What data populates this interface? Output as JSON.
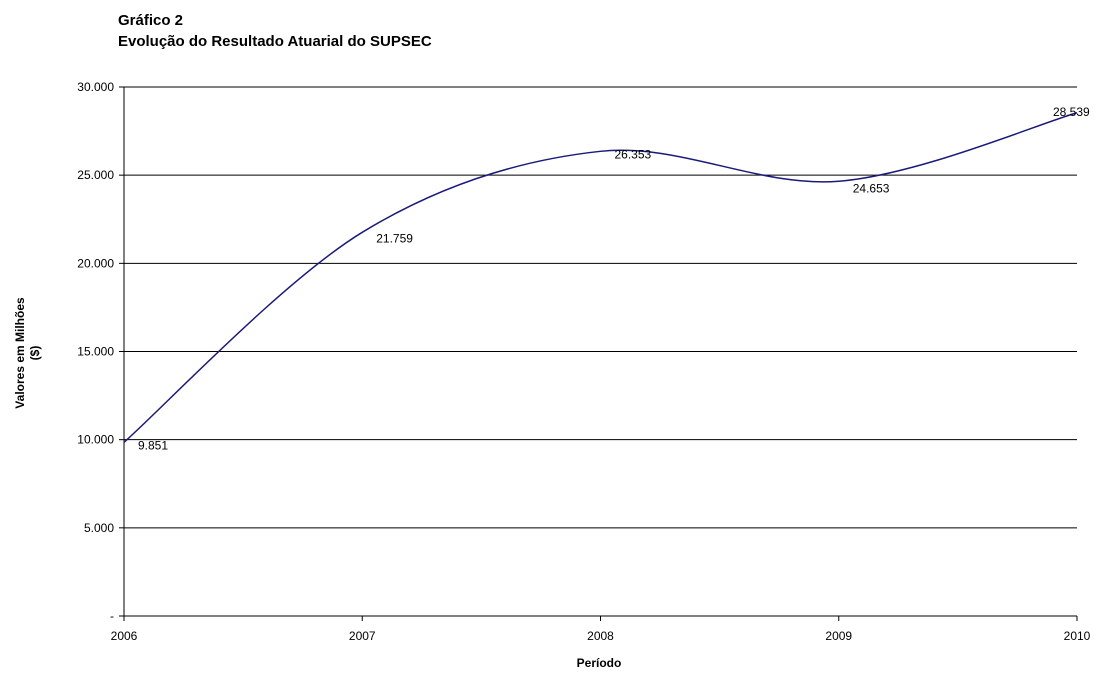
{
  "chart_data": {
    "type": "line",
    "title": "Gráfico 2",
    "subtitle": "Evolução do Resultado Atuarial do SUPSEC",
    "xlabel": "Período",
    "ylabel_line1": "Valores em Milhões",
    "ylabel_line2": "($)",
    "x": [
      "2006",
      "2007",
      "2008",
      "2009",
      "2010"
    ],
    "series": [
      {
        "values": [
          9851,
          21759,
          26353,
          24653,
          28539
        ]
      }
    ],
    "data_labels": [
      "9.851",
      "21.759",
      "26.353",
      "24.653",
      "28.539"
    ],
    "ylim": [
      0,
      30000
    ],
    "yticks": [
      0,
      5000,
      10000,
      15000,
      20000,
      25000,
      30000
    ],
    "ytick_labels": [
      "-",
      "5.000",
      "10.000",
      "15.000",
      "20.000",
      "25.000",
      "30.000"
    ],
    "grid": "horizontal",
    "line_style": "smoothed",
    "line_color": "#1a1a7a"
  }
}
